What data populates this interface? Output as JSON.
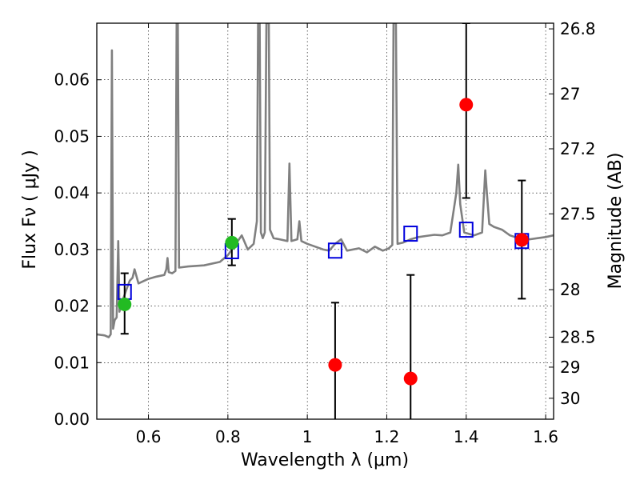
{
  "chart_data": {
    "type": "scatter",
    "xlabel": "Wavelength  λ (μm)",
    "ylabel": "Flux  Fν  ( μJy )",
    "y2label": "Magnitude (AB)",
    "xlim": [
      0.47,
      1.62
    ],
    "ylim": [
      0.0,
      0.07
    ],
    "grid": true,
    "x_ticks": [
      {
        "value": 0.6,
        "label": "0.6"
      },
      {
        "value": 0.8,
        "label": "0.8"
      },
      {
        "value": 1.0,
        "label": "1"
      },
      {
        "value": 1.2,
        "label": "1.2"
      },
      {
        "value": 1.4,
        "label": "1.4"
      },
      {
        "value": 1.6,
        "label": "1.6"
      }
    ],
    "y_ticks": [
      {
        "value": 0.0,
        "label": "0.00"
      },
      {
        "value": 0.01,
        "label": "0.01"
      },
      {
        "value": 0.02,
        "label": "0.02"
      },
      {
        "value": 0.03,
        "label": "0.03"
      },
      {
        "value": 0.04,
        "label": "0.04"
      },
      {
        "value": 0.05,
        "label": "0.05"
      },
      {
        "value": 0.06,
        "label": "0.06"
      }
    ],
    "y2_ticks": [
      {
        "flux": 0.069,
        "label": "26.8"
      },
      {
        "flux": 0.0575,
        "label": "27"
      },
      {
        "flux": 0.0478,
        "label": "27.2"
      },
      {
        "flux": 0.0363,
        "label": "27.5"
      },
      {
        "flux": 0.0229,
        "label": "28"
      },
      {
        "flux": 0.0145,
        "label": "28.5"
      },
      {
        "flux": 0.0092,
        "label": "29"
      },
      {
        "flux": 0.0037,
        "label": "30"
      }
    ],
    "colors": {
      "spectrum": "#808080",
      "model": "#0000dd",
      "detection": "#22bb22",
      "nondetection": "#ff0000",
      "errorbar": "#000000"
    },
    "series": [
      {
        "name": "model_spectrum",
        "kind": "line",
        "points": [
          [
            0.47,
            0.015
          ],
          [
            0.49,
            0.0148
          ],
          [
            0.5,
            0.0145
          ],
          [
            0.505,
            0.015
          ],
          [
            0.508,
            0.0652
          ],
          [
            0.511,
            0.016
          ],
          [
            0.515,
            0.0175
          ],
          [
            0.52,
            0.018
          ],
          [
            0.524,
            0.0315
          ],
          [
            0.527,
            0.019
          ],
          [
            0.535,
            0.021
          ],
          [
            0.545,
            0.023
          ],
          [
            0.553,
            0.0245
          ],
          [
            0.56,
            0.025
          ],
          [
            0.565,
            0.0265
          ],
          [
            0.575,
            0.024
          ],
          [
            0.59,
            0.0245
          ],
          [
            0.6,
            0.0248
          ],
          [
            0.62,
            0.0252
          ],
          [
            0.64,
            0.0255
          ],
          [
            0.645,
            0.0265
          ],
          [
            0.648,
            0.0285
          ],
          [
            0.651,
            0.026
          ],
          [
            0.66,
            0.0258
          ],
          [
            0.668,
            0.0262
          ],
          [
            0.671,
            0.07
          ],
          [
            0.674,
            0.07
          ],
          [
            0.677,
            0.0268
          ],
          [
            0.7,
            0.027
          ],
          [
            0.74,
            0.0272
          ],
          [
            0.78,
            0.0278
          ],
          [
            0.8,
            0.029
          ],
          [
            0.81,
            0.03
          ],
          [
            0.82,
            0.031
          ],
          [
            0.835,
            0.0325
          ],
          [
            0.85,
            0.03
          ],
          [
            0.865,
            0.031
          ],
          [
            0.873,
            0.035
          ],
          [
            0.876,
            0.07
          ],
          [
            0.88,
            0.07
          ],
          [
            0.883,
            0.033
          ],
          [
            0.888,
            0.032
          ],
          [
            0.893,
            0.033
          ],
          [
            0.897,
            0.07
          ],
          [
            0.903,
            0.07
          ],
          [
            0.906,
            0.0335
          ],
          [
            0.915,
            0.032
          ],
          [
            0.93,
            0.0318
          ],
          [
            0.95,
            0.0315
          ],
          [
            0.955,
            0.0452
          ],
          [
            0.96,
            0.0315
          ],
          [
            0.975,
            0.0318
          ],
          [
            0.98,
            0.035
          ],
          [
            0.985,
            0.0315
          ],
          [
            1.0,
            0.031
          ],
          [
            1.02,
            0.0305
          ],
          [
            1.04,
            0.03
          ],
          [
            1.055,
            0.0298
          ],
          [
            1.07,
            0.031
          ],
          [
            1.085,
            0.0318
          ],
          [
            1.1,
            0.0298
          ],
          [
            1.13,
            0.0302
          ],
          [
            1.15,
            0.0295
          ],
          [
            1.17,
            0.0305
          ],
          [
            1.19,
            0.0298
          ],
          [
            1.205,
            0.0302
          ],
          [
            1.214,
            0.0308
          ],
          [
            1.217,
            0.07
          ],
          [
            1.223,
            0.07
          ],
          [
            1.227,
            0.031
          ],
          [
            1.24,
            0.0312
          ],
          [
            1.26,
            0.0318
          ],
          [
            1.28,
            0.0322
          ],
          [
            1.3,
            0.0324
          ],
          [
            1.32,
            0.0326
          ],
          [
            1.34,
            0.0325
          ],
          [
            1.36,
            0.033
          ],
          [
            1.375,
            0.04
          ],
          [
            1.38,
            0.045
          ],
          [
            1.385,
            0.038
          ],
          [
            1.395,
            0.033
          ],
          [
            1.42,
            0.0325
          ],
          [
            1.44,
            0.033
          ],
          [
            1.448,
            0.044
          ],
          [
            1.452,
            0.04
          ],
          [
            1.458,
            0.0345
          ],
          [
            1.47,
            0.034
          ],
          [
            1.49,
            0.0335
          ],
          [
            1.51,
            0.0325
          ],
          [
            1.54,
            0.0318
          ],
          [
            1.56,
            0.0318
          ],
          [
            1.58,
            0.032
          ],
          [
            1.6,
            0.0322
          ],
          [
            1.62,
            0.0325
          ]
        ]
      },
      {
        "name": "model_photometry",
        "kind": "open-square",
        "points": [
          [
            0.54,
            0.0225
          ],
          [
            0.81,
            0.0297
          ],
          [
            1.07,
            0.0298
          ],
          [
            1.26,
            0.0328
          ],
          [
            1.4,
            0.0335
          ],
          [
            1.54,
            0.0315
          ]
        ]
      },
      {
        "name": "detections",
        "kind": "marker",
        "points": [
          {
            "x": 0.54,
            "y": 0.0203,
            "err_lo": 0.0052,
            "err_hi": 0.0055
          },
          {
            "x": 0.81,
            "y": 0.0312,
            "err_lo": 0.004,
            "err_hi": 0.0042
          }
        ]
      },
      {
        "name": "nondetections",
        "kind": "marker",
        "points": [
          {
            "x": 1.07,
            "y": 0.0096,
            "err_lo": 0.0096,
            "err_hi": 0.011
          },
          {
            "x": 1.26,
            "y": 0.0072,
            "err_lo": 0.0072,
            "err_hi": 0.0183
          },
          {
            "x": 1.4,
            "y": 0.0556,
            "err_lo": 0.0165,
            "err_hi": 0.0144
          },
          {
            "x": 1.54,
            "y": 0.0317,
            "err_lo": 0.0104,
            "err_hi": 0.0105
          }
        ]
      }
    ]
  }
}
